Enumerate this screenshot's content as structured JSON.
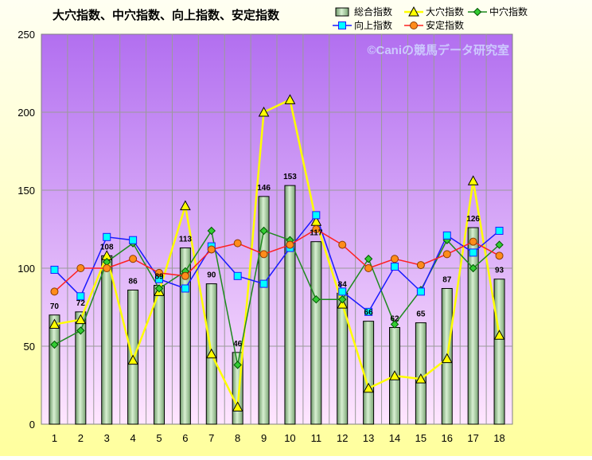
{
  "chart_data": {
    "type": "bar+line",
    "title": "大穴指数、中穴指数、向上指数、安定指数",
    "watermark": "©Caniの競馬データ研究室",
    "categories": [
      "1",
      "2",
      "3",
      "4",
      "5",
      "6",
      "7",
      "8",
      "9",
      "10",
      "11",
      "12",
      "13",
      "14",
      "15",
      "16",
      "17",
      "18"
    ],
    "ylim": [
      0,
      250
    ],
    "yticks": [
      0,
      50,
      100,
      150,
      200,
      250
    ],
    "grid": true,
    "legend_position": "top-right",
    "series": [
      {
        "name": "総合指数",
        "kind": "bar",
        "color": "#a8d5a2",
        "values": [
          70,
          72,
          108,
          86,
          89,
          113,
          90,
          46,
          146,
          153,
          117,
          84,
          66,
          62,
          65,
          87,
          126,
          93
        ]
      },
      {
        "name": "大穴指数",
        "kind": "line",
        "color": "#ffff00",
        "marker": "triangle",
        "values": [
          64,
          67,
          108,
          41,
          85,
          140,
          45,
          11,
          200,
          208,
          130,
          77,
          23,
          31,
          29,
          42,
          156,
          57
        ]
      },
      {
        "name": "中穴指数",
        "kind": "line",
        "color": "#1e8a1e",
        "marker": "diamond",
        "values": [
          51,
          60,
          104,
          116,
          87,
          98,
          124,
          38,
          124,
          118,
          80,
          80,
          106,
          64,
          86,
          118,
          100,
          115
        ]
      },
      {
        "name": "向上指数",
        "kind": "line",
        "color": "#1a1aff",
        "marker": "square",
        "values": [
          99,
          82,
          120,
          118,
          93,
          87,
          114,
          95,
          90,
          113,
          134,
          85,
          72,
          101,
          85,
          121,
          110,
          124
        ]
      },
      {
        "name": "安定指数",
        "kind": "line",
        "color": "#ff2020",
        "marker": "circle",
        "values": [
          85,
          100,
          100,
          106,
          97,
          95,
          112,
          116,
          109,
          115,
          125,
          115,
          100,
          106,
          102,
          109,
          117,
          108
        ]
      }
    ]
  }
}
